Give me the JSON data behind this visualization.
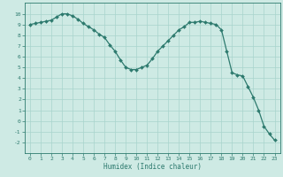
{
  "x": [
    0,
    0.5,
    1,
    1.5,
    2,
    2.5,
    3,
    3.5,
    4,
    4.5,
    5,
    5.5,
    6,
    6.5,
    7,
    7.5,
    8,
    8.5,
    9,
    9.5,
    10,
    10.5,
    11,
    11.5,
    12,
    12.5,
    13,
    13.5,
    14,
    14.5,
    15,
    15.5,
    16,
    16.5,
    17,
    17.5,
    18,
    18.5,
    19,
    19.5,
    20,
    20.5,
    21,
    21.5,
    22,
    22.5,
    23
  ],
  "y": [
    9.0,
    9.1,
    9.2,
    9.3,
    9.4,
    9.7,
    10.0,
    10.0,
    9.8,
    9.5,
    9.1,
    8.8,
    8.5,
    8.1,
    7.8,
    7.1,
    6.5,
    5.7,
    5.0,
    4.8,
    4.8,
    5.0,
    5.2,
    5.8,
    6.5,
    7.0,
    7.5,
    8.0,
    8.5,
    8.8,
    9.2,
    9.2,
    9.3,
    9.2,
    9.1,
    9.0,
    8.5,
    6.5,
    4.5,
    4.3,
    4.2,
    3.2,
    2.2,
    1.0,
    -0.5,
    -1.2,
    -1.8
  ],
  "line_color": "#2d7a6e",
  "marker_color": "#2d7a6e",
  "bg_color": "#ceeae4",
  "grid_color": "#a8d4cc",
  "xlabel": "Humidex (Indice chaleur)",
  "ylim": [
    -3,
    11
  ],
  "xlim": [
    -0.5,
    23.5
  ],
  "yticks": [
    -2,
    -1,
    0,
    1,
    2,
    3,
    4,
    5,
    6,
    7,
    8,
    9,
    10
  ],
  "xticks": [
    0,
    1,
    2,
    3,
    4,
    5,
    6,
    7,
    8,
    9,
    10,
    11,
    12,
    13,
    14,
    15,
    16,
    17,
    18,
    19,
    20,
    21,
    22,
    23
  ],
  "marker_size": 2.0,
  "line_width": 0.9
}
